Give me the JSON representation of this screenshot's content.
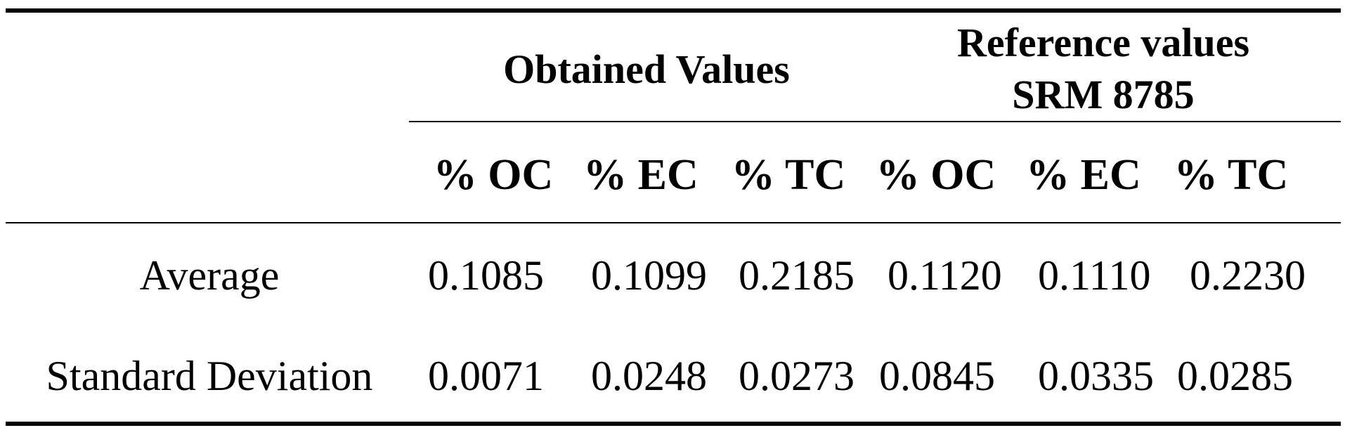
{
  "table": {
    "group_headers": {
      "obtained": "Obtained Values",
      "reference_line1": "Reference values",
      "reference_line2": "SRM 8785"
    },
    "column_headers": [
      "% OC",
      "% EC",
      "% TC",
      "% OC",
      "% EC",
      "% TC"
    ],
    "rows": [
      {
        "label": "Average",
        "values": [
          "0.1085",
          "0.1099",
          "0.2185",
          "0.1120",
          "0.1110",
          "0.2230"
        ]
      },
      {
        "label": "Standard Deviation",
        "values": [
          "0.0071",
          "0.0248",
          "0.0273",
          "0.0845",
          "0.0335",
          "0.0285"
        ]
      }
    ]
  }
}
